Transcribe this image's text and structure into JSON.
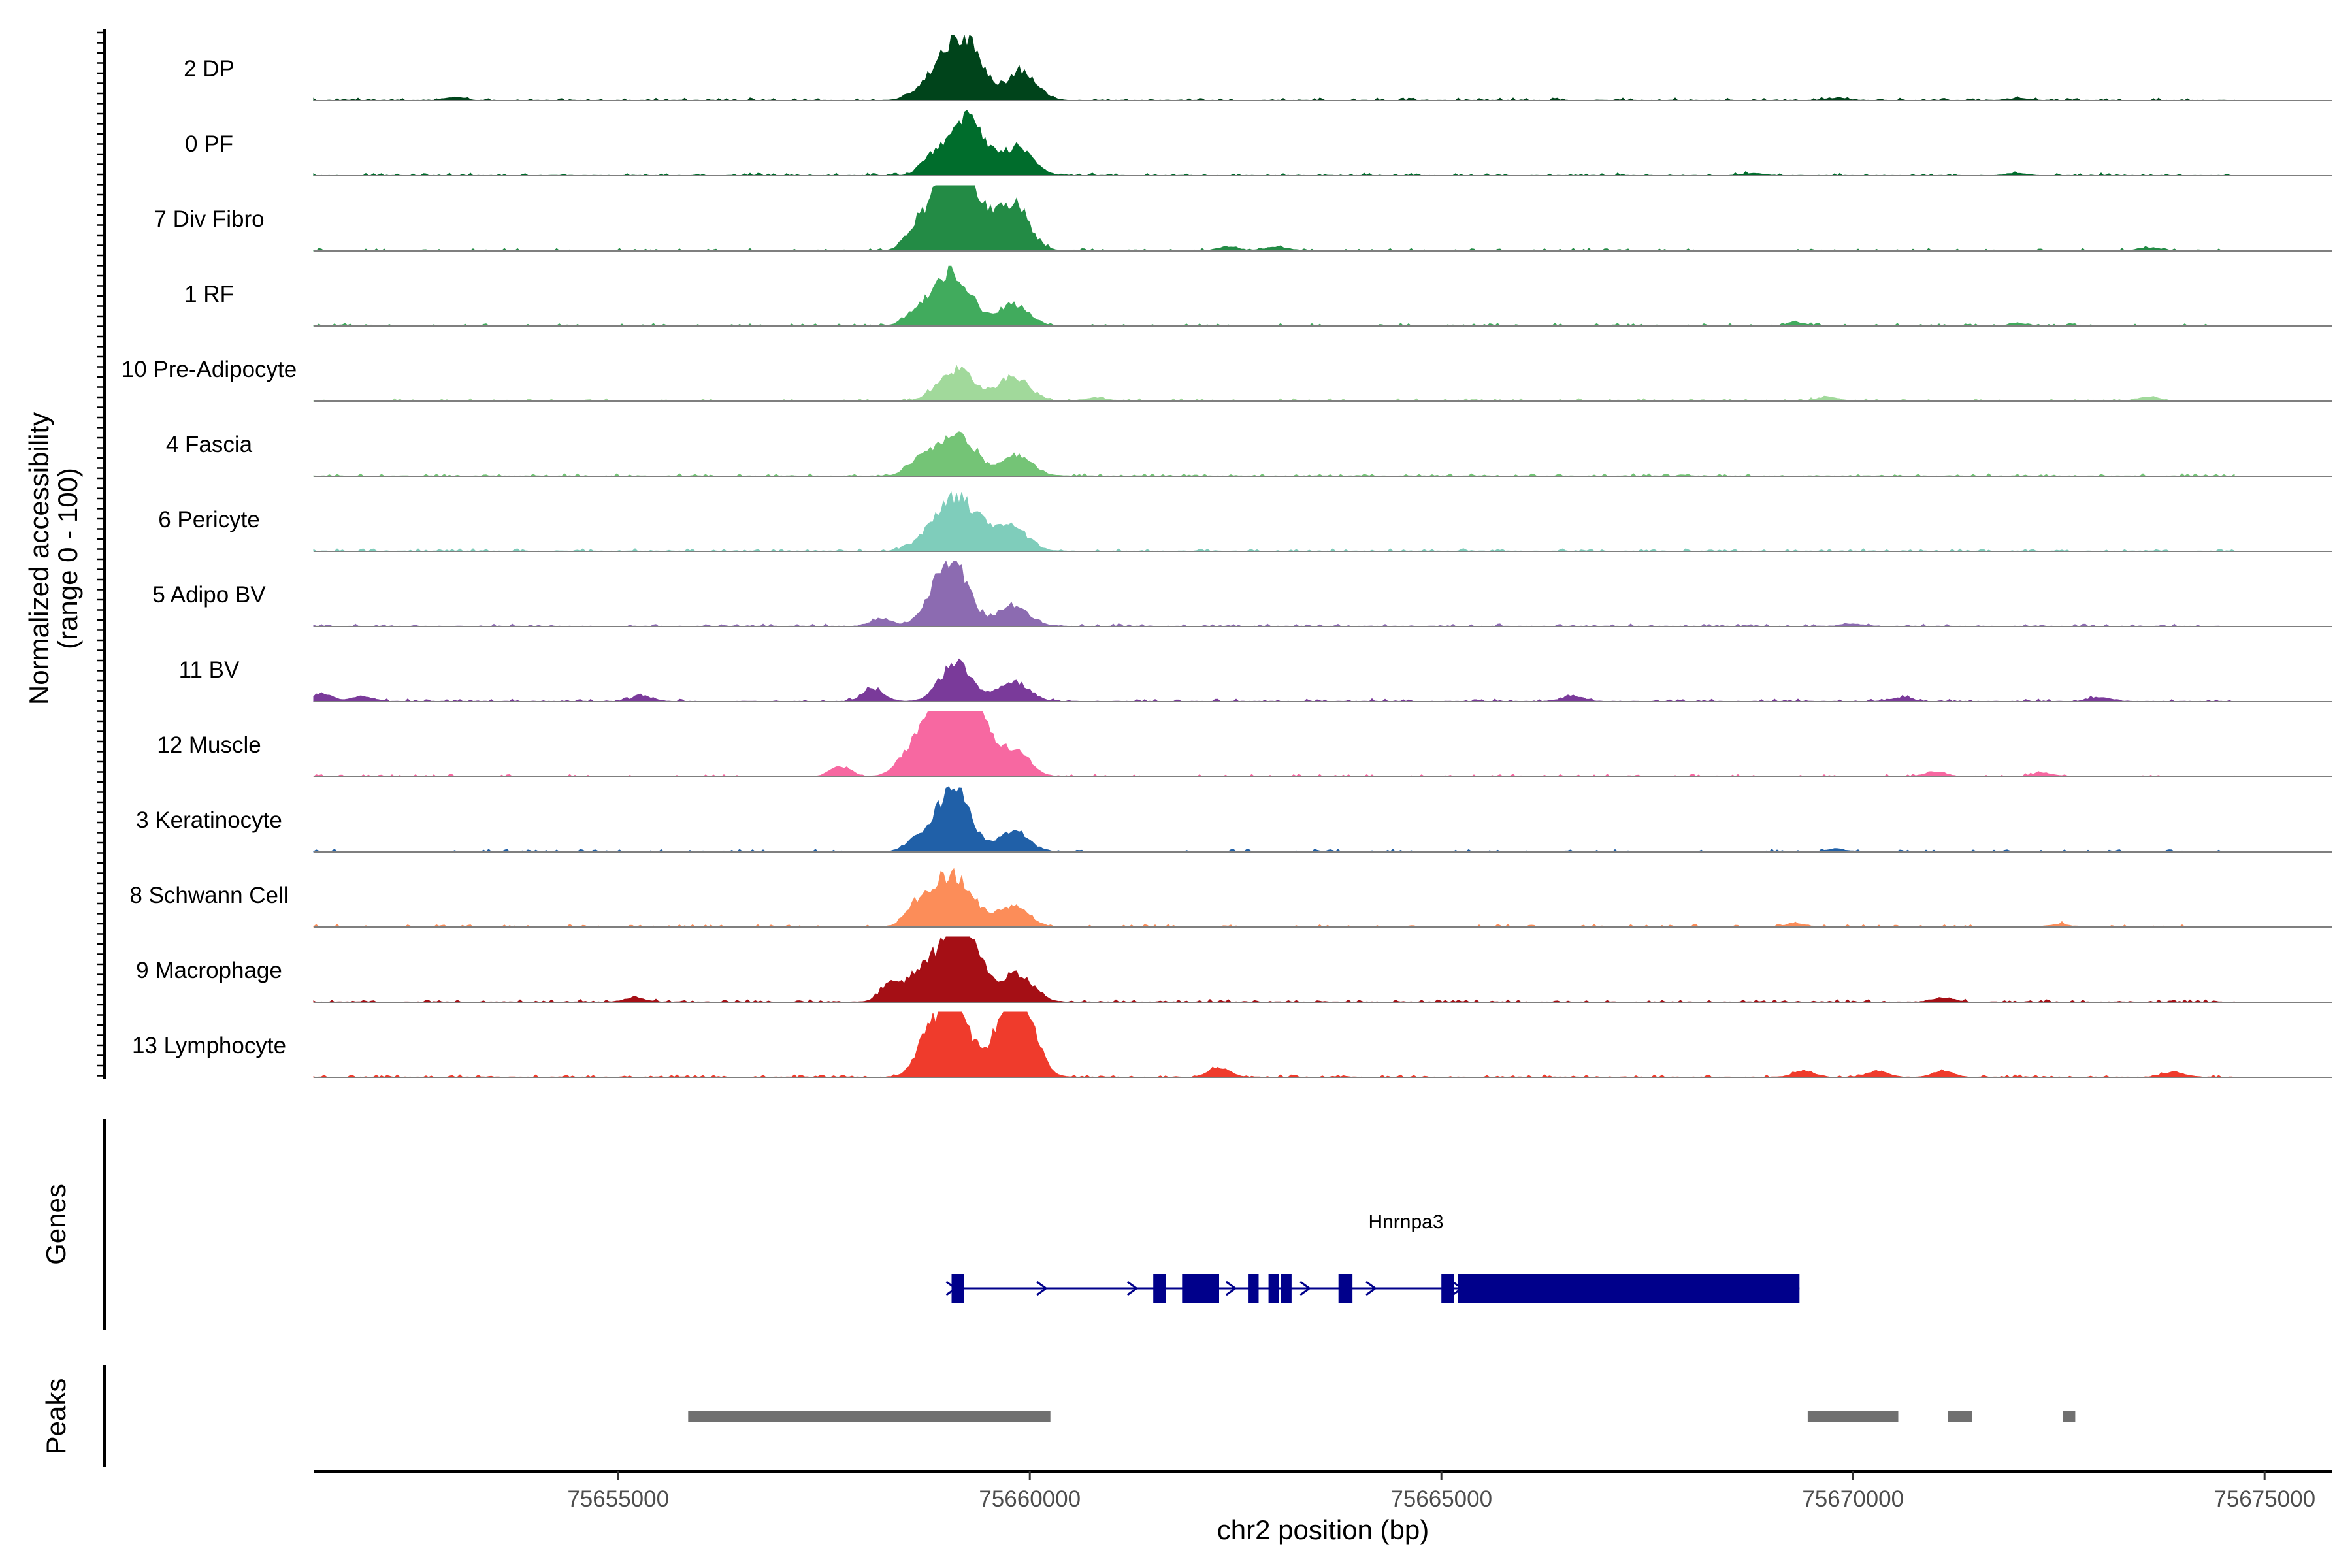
{
  "chart_data": {
    "type": "area",
    "title": "",
    "region": {
      "start": 75651300,
      "end": 75675500
    },
    "xlabel": "chr2 position (bp)",
    "xticks": [
      75655000,
      75660000,
      75665000,
      75670000,
      75675000
    ],
    "ylabel_line1": "Normalized accessibility",
    "ylabel_line2": "(range 0 - 100)",
    "genes_label": "Genes",
    "peaks_label": "Peaks",
    "tracks": [
      {
        "name": "2 DP",
        "color": "#00441b",
        "peaks": [
          [
            75658800,
            0.35
          ],
          [
            75659100,
            0.82
          ],
          [
            75659300,
            0.6
          ],
          [
            75659900,
            0.55
          ],
          [
            75653000,
            0.06
          ],
          [
            75669800,
            0.05
          ],
          [
            75672000,
            0.04
          ]
        ]
      },
      {
        "name": "0 PF",
        "color": "#006d2c",
        "peaks": [
          [
            75658800,
            0.3
          ],
          [
            75659150,
            0.85
          ],
          [
            75659350,
            0.5
          ],
          [
            75659850,
            0.52
          ],
          [
            75668800,
            0.04
          ],
          [
            75672000,
            0.04
          ]
        ]
      },
      {
        "name": "7 Div Fibro",
        "color": "#238b45",
        "peaks": [
          [
            75658600,
            0.3
          ],
          [
            75658900,
            0.8
          ],
          [
            75659100,
            1.0
          ],
          [
            75659350,
            0.75
          ],
          [
            75659800,
            0.9
          ],
          [
            75662400,
            0.08
          ],
          [
            75663000,
            0.08
          ],
          [
            75673600,
            0.06
          ]
        ]
      },
      {
        "name": "1 RF",
        "color": "#41ab5d",
        "peaks": [
          [
            75658600,
            0.2
          ],
          [
            75658900,
            0.55
          ],
          [
            75659150,
            0.75
          ],
          [
            75659800,
            0.42
          ],
          [
            75669300,
            0.06
          ],
          [
            75672000,
            0.04
          ]
        ]
      },
      {
        "name": "10 Pre-Adipocyte",
        "color": "#a1d99b",
        "peaks": [
          [
            75659000,
            0.32
          ],
          [
            75659200,
            0.38
          ],
          [
            75659800,
            0.48
          ],
          [
            75660800,
            0.06
          ],
          [
            75669700,
            0.08
          ],
          [
            75673600,
            0.08
          ]
        ]
      },
      {
        "name": "4 Fascia",
        "color": "#74c476",
        "peaks": [
          [
            75658600,
            0.2
          ],
          [
            75658900,
            0.45
          ],
          [
            75659200,
            0.6
          ],
          [
            75659850,
            0.4
          ]
        ]
      },
      {
        "name": "6 Pericyte",
        "color": "#7fcdbb",
        "peaks": [
          [
            75658800,
            0.35
          ],
          [
            75659100,
            0.85
          ],
          [
            75659400,
            0.4
          ],
          [
            75659800,
            0.45
          ]
        ]
      },
      {
        "name": "5 Adipo BV",
        "color": "#8c6bb1",
        "peaks": [
          [
            75658200,
            0.15
          ],
          [
            75658900,
            0.55
          ],
          [
            75659100,
            0.95
          ],
          [
            75659800,
            0.42
          ],
          [
            75670000,
            0.05
          ]
        ]
      },
      {
        "name": "11 BV",
        "color": "#7a3a9a",
        "peaks": [
          [
            75651400,
            0.15
          ],
          [
            75651900,
            0.1
          ],
          [
            75655300,
            0.1
          ],
          [
            75658100,
            0.25
          ],
          [
            75659100,
            0.75
          ],
          [
            75659800,
            0.4
          ],
          [
            75666600,
            0.1
          ],
          [
            75670600,
            0.08
          ],
          [
            75673000,
            0.08
          ]
        ]
      },
      {
        "name": "12 Muscle",
        "color": "#f768a1",
        "peaks": [
          [
            75657700,
            0.2
          ],
          [
            75658600,
            0.5
          ],
          [
            75658900,
            1.0
          ],
          [
            75659200,
            1.1
          ],
          [
            75659300,
            0.95
          ],
          [
            75659800,
            0.52
          ],
          [
            75671000,
            0.1
          ],
          [
            75672300,
            0.08
          ]
        ]
      },
      {
        "name": "3 Keratinocyte",
        "color": "#2060a8",
        "peaks": [
          [
            75658600,
            0.2
          ],
          [
            75659000,
            0.8
          ],
          [
            75659150,
            0.6
          ],
          [
            75659800,
            0.4
          ],
          [
            75669800,
            0.05
          ]
        ]
      },
      {
        "name": "8 Schwann Cell",
        "color": "#fc8d59",
        "peaks": [
          [
            75658600,
            0.3
          ],
          [
            75658900,
            0.75
          ],
          [
            75659200,
            0.65
          ],
          [
            75659800,
            0.42
          ],
          [
            75669300,
            0.06
          ],
          [
            75672500,
            0.05
          ]
        ]
      },
      {
        "name": "9 Macrophage",
        "color": "#a50f15",
        "peaks": [
          [
            75658300,
            0.3
          ],
          [
            75658700,
            0.65
          ],
          [
            75659100,
            1.2
          ],
          [
            75659300,
            0.7
          ],
          [
            75659850,
            0.55
          ],
          [
            75671100,
            0.08
          ],
          [
            75655200,
            0.08
          ]
        ]
      },
      {
        "name": "13 Lymphocyte",
        "color": "#ef3b2c",
        "peaks": [
          [
            75658700,
            0.25
          ],
          [
            75658900,
            0.85
          ],
          [
            75659150,
            0.95
          ],
          [
            75659750,
            1.0
          ],
          [
            75659900,
            1.05
          ],
          [
            75662300,
            0.18
          ],
          [
            75669400,
            0.12
          ],
          [
            75670300,
            0.12
          ],
          [
            75671100,
            0.12
          ],
          [
            75673900,
            0.1
          ]
        ]
      }
    ],
    "gene": {
      "name": "Hnrnpa3",
      "color": "#00008b",
      "start": 75659050,
      "end": 75669350,
      "exons": [
        [
          75659050,
          75659200
        ],
        [
          75661500,
          75661650
        ],
        [
          75661850,
          75662300
        ],
        [
          75662650,
          75662780
        ],
        [
          75662900,
          75663030
        ],
        [
          75663050,
          75663180
        ],
        [
          75663750,
          75663920
        ],
        [
          75665000,
          75665150
        ],
        [
          75665200,
          75669350
        ]
      ],
      "arrows": [
        75659050,
        75660150,
        75661250,
        75662450,
        75663350,
        75664150,
        75665200
      ]
    },
    "peaks": [
      [
        75655850,
        75660250
      ],
      [
        75669450,
        75670550
      ],
      [
        75671150,
        75671450
      ],
      [
        75672550,
        75672700
      ]
    ]
  }
}
